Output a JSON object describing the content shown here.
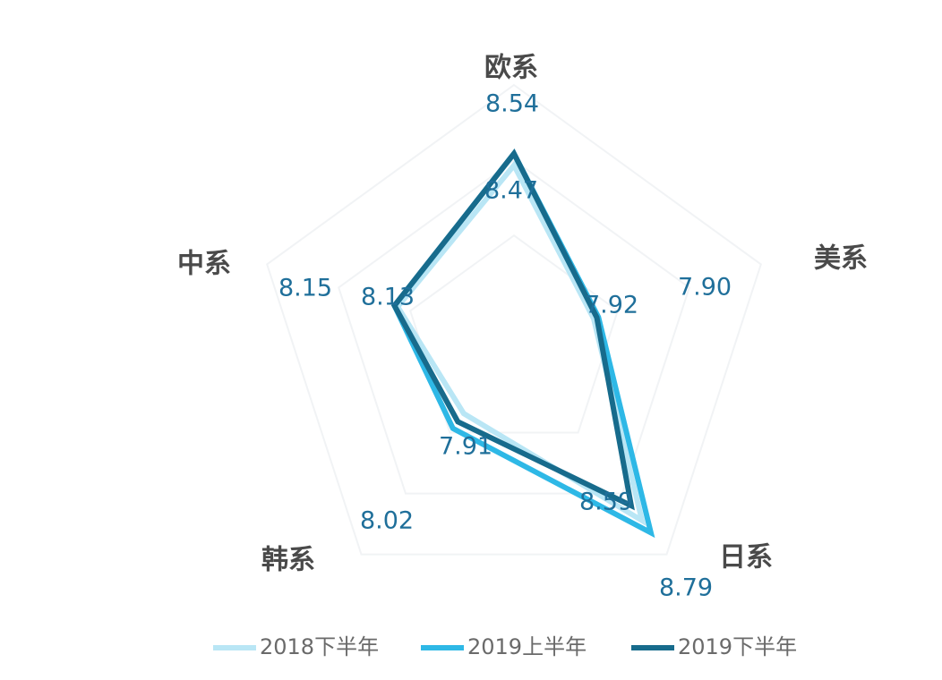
{
  "chart_data": {
    "type": "radar",
    "categories": [
      "欧系",
      "美系",
      "日系",
      "韩系",
      "中系"
    ],
    "series": [
      {
        "name": "2018下半年",
        "color": "#b9e6f5",
        "values": [
          8.47,
          7.9,
          8.7,
          7.91,
          8.13
        ]
      },
      {
        "name": "2019上半年",
        "color": "#2eb8e6",
        "values": [
          8.54,
          7.93,
          8.79,
          8.02,
          8.15
        ]
      },
      {
        "name": "2019下半年",
        "color": "#176b8c",
        "values": [
          8.54,
          7.92,
          8.59,
          7.97,
          8.15
        ]
      }
    ],
    "data_labels": [
      {
        "text": "8.54"
      },
      {
        "text": "8.47"
      },
      {
        "text": "7.90"
      },
      {
        "text": "7.92"
      },
      {
        "text": "8.79"
      },
      {
        "text": "8.59"
      },
      {
        "text": "8.02"
      },
      {
        "text": "7.91"
      },
      {
        "text": "8.15"
      },
      {
        "text": "8.13"
      }
    ],
    "legend_position": "bottom",
    "grid": true
  }
}
